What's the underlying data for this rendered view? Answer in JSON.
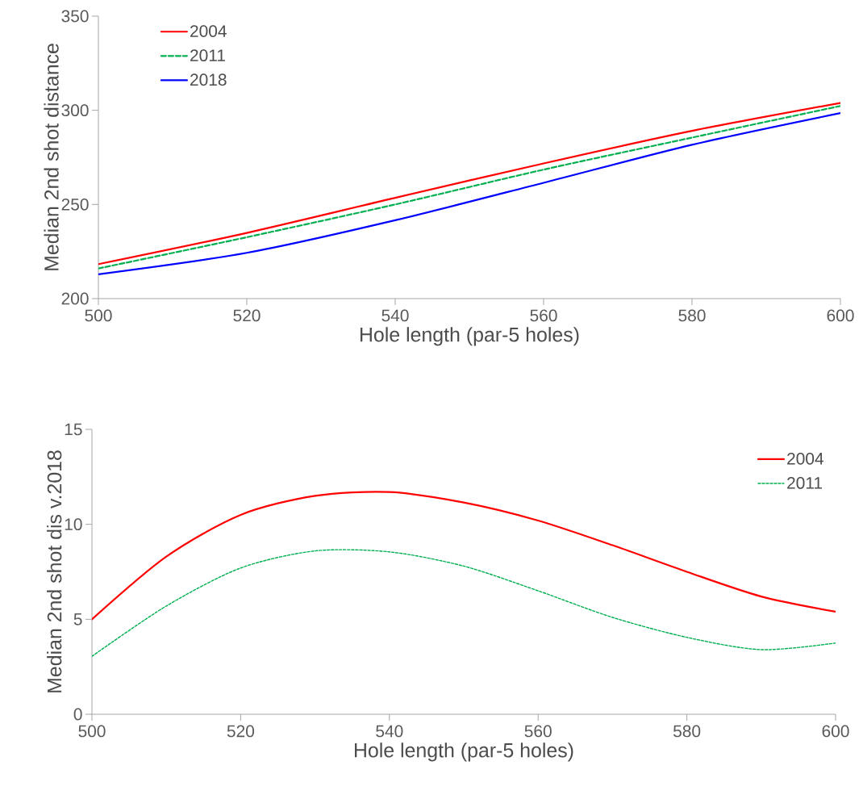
{
  "chart_data": [
    {
      "type": "line",
      "xlabel": "Hole length (par-5 holes)",
      "ylabel": "Median 2nd shot distance",
      "x": [
        500,
        520,
        540,
        560,
        580,
        600
      ],
      "xlim": [
        500,
        600
      ],
      "xticks": [
        500,
        520,
        540,
        560,
        580,
        600
      ],
      "ylim": [
        200,
        350
      ],
      "yticks": [
        200,
        250,
        300,
        350
      ],
      "legend": "top left",
      "grid": false,
      "series": [
        {
          "name": "2004",
          "color": "#ff0000",
          "line_style": "solid",
          "values": [
            218.3,
            234.9,
            253.5,
            271.8,
            289.1,
            303.9
          ]
        },
        {
          "name": "2011",
          "color": "#00b050",
          "line_style": "dashed",
          "values": [
            216,
            232.6,
            250,
            268.5,
            285.5,
            302.3
          ]
        },
        {
          "name": "2018",
          "color": "#0000ff",
          "line_style": "solid",
          "values": [
            212.9,
            224.3,
            241.6,
            261.5,
            281.7,
            298.5
          ]
        }
      ]
    },
    {
      "type": "line",
      "xlabel": "Hole length (par-5 holes)",
      "ylabel": "Median 2nd shot dis v.2018",
      "x": [
        500,
        510,
        520,
        530,
        540,
        550,
        560,
        570,
        580,
        590,
        600
      ],
      "xlim": [
        500,
        600
      ],
      "xticks": [
        500,
        520,
        540,
        560,
        580,
        600
      ],
      "ylim": [
        0,
        15
      ],
      "yticks": [
        0,
        5,
        10,
        15
      ],
      "legend": "top right",
      "grid": false,
      "series": [
        {
          "name": "2004",
          "color": "#ff0000",
          "line_style": "solid",
          "values": [
            5.0,
            8.3,
            10.5,
            11.5,
            11.7,
            11.15,
            10.2,
            8.9,
            7.5,
            6.2,
            5.4
          ]
        },
        {
          "name": "2011",
          "color": "#00b050",
          "line_style": "dotted",
          "values": [
            3.05,
            5.7,
            7.7,
            8.6,
            8.55,
            7.8,
            6.5,
            5.1,
            4.05,
            3.4,
            3.75
          ]
        }
      ]
    }
  ]
}
